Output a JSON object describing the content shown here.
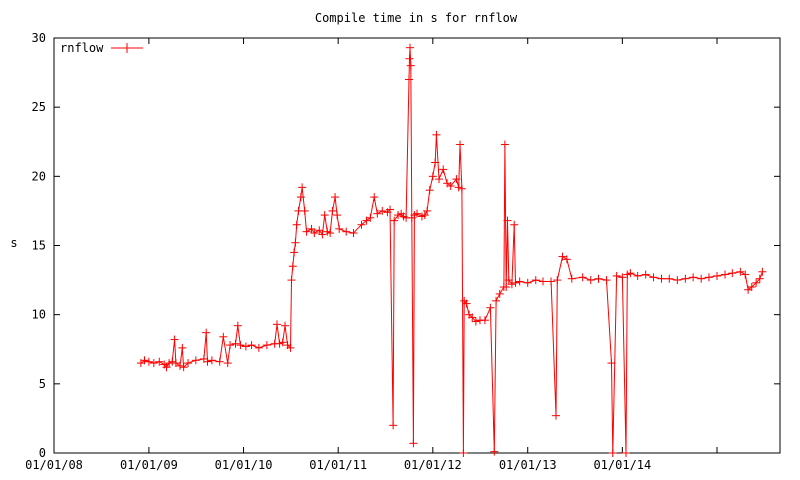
{
  "chart_data": {
    "type": "line",
    "title": "Compile time in s for rnflow",
    "xlabel": "",
    "ylabel": "s",
    "xlim": [
      "2008-01-01",
      "2015-09-01"
    ],
    "ylim": [
      0,
      30
    ],
    "x_ticks": [
      "01/01/08",
      "01/01/09",
      "01/01/10",
      "01/01/11",
      "01/01/12",
      "01/01/13",
      "01/01/14"
    ],
    "x_tick_dates": [
      "2008-01-01",
      "2009-01-01",
      "2010-01-01",
      "2011-01-01",
      "2012-01-01",
      "2013-01-01",
      "2014-01-01"
    ],
    "y_ticks": [
      0,
      5,
      10,
      15,
      20,
      25,
      30
    ],
    "grid": false,
    "legend_position": "top-left",
    "series": [
      {
        "name": "rnflow",
        "color": "#ff0000",
        "marker": "plus",
        "points": [
          [
            "2008-12-01",
            6.5
          ],
          [
            "2008-12-15",
            6.7
          ],
          [
            "2009-01-01",
            6.6
          ],
          [
            "2009-01-20",
            6.5
          ],
          [
            "2009-02-10",
            6.6
          ],
          [
            "2009-03-01",
            6.4
          ],
          [
            "2009-03-10",
            6.2
          ],
          [
            "2009-03-20",
            6.5
          ],
          [
            "2009-04-01",
            6.6
          ],
          [
            "2009-04-10",
            8.2
          ],
          [
            "2009-04-15",
            6.5
          ],
          [
            "2009-05-01",
            6.3
          ],
          [
            "2009-05-10",
            7.6
          ],
          [
            "2009-05-15",
            6.2
          ],
          [
            "2009-06-01",
            6.5
          ],
          [
            "2009-07-01",
            6.7
          ],
          [
            "2009-08-01",
            6.8
          ],
          [
            "2009-08-10",
            8.7
          ],
          [
            "2009-08-15",
            6.6
          ],
          [
            "2009-09-01",
            6.7
          ],
          [
            "2009-10-01",
            6.6
          ],
          [
            "2009-10-15",
            8.4
          ],
          [
            "2009-11-01",
            6.5
          ],
          [
            "2009-11-10",
            7.8
          ],
          [
            "2009-12-01",
            7.9
          ],
          [
            "2009-12-10",
            9.2
          ],
          [
            "2009-12-20",
            7.8
          ],
          [
            "2010-01-10",
            7.7
          ],
          [
            "2010-02-01",
            7.8
          ],
          [
            "2010-03-01",
            7.6
          ],
          [
            "2010-04-01",
            7.8
          ],
          [
            "2010-05-01",
            7.9
          ],
          [
            "2010-05-10",
            9.3
          ],
          [
            "2010-05-20",
            7.9
          ],
          [
            "2010-06-01",
            8.0
          ],
          [
            "2010-06-10",
            9.2
          ],
          [
            "2010-06-20",
            7.8
          ],
          [
            "2010-07-01",
            7.6
          ],
          [
            "2010-07-05",
            12.5
          ],
          [
            "2010-07-10",
            13.5
          ],
          [
            "2010-07-15",
            14.5
          ],
          [
            "2010-07-20",
            15.2
          ],
          [
            "2010-07-25",
            16.5
          ],
          [
            "2010-08-01",
            17.5
          ],
          [
            "2010-08-10",
            18.5
          ],
          [
            "2010-08-15",
            19.2
          ],
          [
            "2010-08-25",
            17.5
          ],
          [
            "2010-09-01",
            16.0
          ],
          [
            "2010-09-20",
            16.2
          ],
          [
            "2010-10-01",
            15.9
          ],
          [
            "2010-10-20",
            16.1
          ],
          [
            "2010-11-01",
            15.8
          ],
          [
            "2010-11-10",
            17.2
          ],
          [
            "2010-11-20",
            16.0
          ],
          [
            "2010-12-01",
            15.9
          ],
          [
            "2010-12-10",
            17.5
          ],
          [
            "2010-12-20",
            18.5
          ],
          [
            "2010-12-28",
            17.2
          ],
          [
            "2011-01-05",
            16.2
          ],
          [
            "2011-02-01",
            16.0
          ],
          [
            "2011-03-01",
            15.9
          ],
          [
            "2011-04-01",
            16.5
          ],
          [
            "2011-04-20",
            16.8
          ],
          [
            "2011-05-05",
            17.0
          ],
          [
            "2011-05-20",
            18.5
          ],
          [
            "2011-06-01",
            17.3
          ],
          [
            "2011-06-20",
            17.5
          ],
          [
            "2011-07-10",
            17.4
          ],
          [
            "2011-07-20",
            17.6
          ],
          [
            "2011-08-01",
            2.0
          ],
          [
            "2011-08-05",
            16.8
          ],
          [
            "2011-08-20",
            17.2
          ],
          [
            "2011-09-01",
            17.3
          ],
          [
            "2011-09-10",
            17.1
          ],
          [
            "2011-09-20",
            17.0
          ],
          [
            "2011-10-01",
            27.0
          ],
          [
            "2011-10-03",
            28.5
          ],
          [
            "2011-10-05",
            29.3
          ],
          [
            "2011-10-08",
            28.0
          ],
          [
            "2011-10-12",
            17.0
          ],
          [
            "2011-10-18",
            0.7
          ],
          [
            "2011-10-22",
            17.2
          ],
          [
            "2011-11-01",
            17.3
          ],
          [
            "2011-11-20",
            17.1
          ],
          [
            "2011-12-01",
            17.2
          ],
          [
            "2011-12-10",
            17.5
          ],
          [
            "2011-12-20",
            19.0
          ],
          [
            "2012-01-01",
            20.0
          ],
          [
            "2012-01-10",
            21.0
          ],
          [
            "2012-01-15",
            23.0
          ],
          [
            "2012-01-25",
            19.8
          ],
          [
            "2012-02-10",
            20.5
          ],
          [
            "2012-02-25",
            19.5
          ],
          [
            "2012-03-10",
            19.3
          ],
          [
            "2012-04-01",
            19.8
          ],
          [
            "2012-04-10",
            19.2
          ],
          [
            "2012-04-15",
            22.3
          ],
          [
            "2012-04-22",
            19.1
          ],
          [
            "2012-04-28",
            0.0
          ],
          [
            "2012-05-01",
            11.0
          ],
          [
            "2012-05-10",
            10.8
          ],
          [
            "2012-05-20",
            10.0
          ],
          [
            "2012-06-01",
            9.8
          ],
          [
            "2012-06-15",
            9.5
          ],
          [
            "2012-07-01",
            9.6
          ],
          [
            "2012-07-20",
            9.6
          ],
          [
            "2012-08-10",
            10.5
          ],
          [
            "2012-08-25",
            0.1
          ],
          [
            "2012-09-01",
            11.0
          ],
          [
            "2012-09-15",
            11.5
          ],
          [
            "2012-10-01",
            12.0
          ],
          [
            "2012-10-05",
            22.3
          ],
          [
            "2012-10-10",
            12.0
          ],
          [
            "2012-10-15",
            16.8
          ],
          [
            "2012-10-20",
            12.5
          ],
          [
            "2012-11-01",
            12.2
          ],
          [
            "2012-11-10",
            16.5
          ],
          [
            "2012-11-15",
            12.3
          ],
          [
            "2012-12-01",
            12.4
          ],
          [
            "2013-01-01",
            12.3
          ],
          [
            "2013-02-01",
            12.5
          ],
          [
            "2013-03-01",
            12.4
          ],
          [
            "2013-04-01",
            12.4
          ],
          [
            "2013-04-20",
            2.7
          ],
          [
            "2013-04-25",
            12.5
          ],
          [
            "2013-05-15",
            14.2
          ],
          [
            "2013-06-01",
            14.0
          ],
          [
            "2013-06-20",
            12.6
          ],
          [
            "2013-08-01",
            12.7
          ],
          [
            "2013-09-01",
            12.5
          ],
          [
            "2013-10-01",
            12.6
          ],
          [
            "2013-11-01",
            12.5
          ],
          [
            "2013-11-20",
            6.5
          ],
          [
            "2013-11-25",
            0.0
          ],
          [
            "2013-12-10",
            12.8
          ],
          [
            "2014-01-01",
            12.7
          ],
          [
            "2014-01-15",
            0.0
          ],
          [
            "2014-01-20",
            12.9
          ],
          [
            "2014-02-01",
            13.0
          ],
          [
            "2014-03-01",
            12.8
          ],
          [
            "2014-04-01",
            12.9
          ],
          [
            "2014-05-01",
            12.7
          ],
          [
            "2014-06-01",
            12.6
          ],
          [
            "2014-07-01",
            12.6
          ],
          [
            "2014-08-01",
            12.5
          ],
          [
            "2014-09-01",
            12.6
          ],
          [
            "2014-10-01",
            12.7
          ],
          [
            "2014-11-01",
            12.6
          ],
          [
            "2014-12-01",
            12.7
          ],
          [
            "2015-01-01",
            12.8
          ],
          [
            "2015-02-01",
            12.9
          ],
          [
            "2015-03-01",
            13.0
          ],
          [
            "2015-04-01",
            13.1
          ],
          [
            "2015-04-20",
            12.9
          ],
          [
            "2015-05-01",
            11.8
          ],
          [
            "2015-05-15",
            12.0
          ],
          [
            "2015-06-01",
            12.3
          ],
          [
            "2015-06-15",
            12.6
          ],
          [
            "2015-06-25",
            13.1
          ]
        ]
      }
    ]
  }
}
